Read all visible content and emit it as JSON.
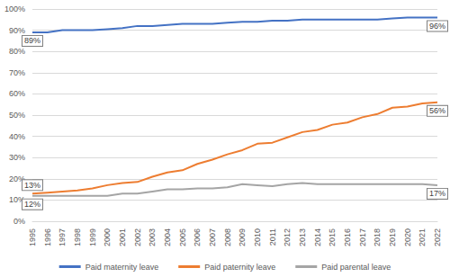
{
  "chart_data": {
    "type": "line",
    "categories": [
      "1995",
      "1996",
      "1997",
      "1998",
      "1999",
      "2000",
      "2001",
      "2002",
      "2003",
      "2004",
      "2005",
      "2006",
      "2007",
      "2008",
      "2009",
      "2010",
      "2011",
      "2012",
      "2013",
      "2014",
      "2015",
      "2016",
      "2017",
      "2018",
      "2019",
      "2020",
      "2021",
      "2022"
    ],
    "series": [
      {
        "name": "Paid maternity leave",
        "color": "#4472c4",
        "values": [
          89,
          89,
          90,
          90,
          90,
          90.5,
          91,
          92,
          92,
          92.5,
          93,
          93,
          93,
          93.5,
          94,
          94,
          94.5,
          94.5,
          95,
          95,
          95,
          95,
          95,
          95,
          95.5,
          96,
          96,
          96
        ]
      },
      {
        "name": "Paid paternity leave",
        "color": "#ed7d31",
        "values": [
          13,
          13.5,
          14,
          14.5,
          15.5,
          17,
          18,
          18.5,
          21,
          23,
          24,
          27,
          29,
          31.5,
          33.5,
          36.5,
          37,
          39.5,
          42,
          43,
          45.5,
          46.5,
          49,
          50.5,
          53.5,
          54,
          55.5,
          56
        ]
      },
      {
        "name": "Paid parental leave",
        "color": "#a5a5a5",
        "values": [
          12,
          12,
          12,
          12,
          12,
          12,
          13,
          13,
          14,
          15,
          15,
          15.5,
          15.5,
          16,
          17.5,
          17,
          16.5,
          17.5,
          18,
          17.5,
          17.5,
          17.5,
          17.5,
          17.5,
          17.5,
          17.5,
          17.5,
          17
        ]
      }
    ],
    "annotations": [
      {
        "series": "Paid maternity leave",
        "x": "1995",
        "text": "89%"
      },
      {
        "series": "Paid maternity leave",
        "x": "2022",
        "text": "96%"
      },
      {
        "series": "Paid paternity leave",
        "x": "1995",
        "text": "13%"
      },
      {
        "series": "Paid paternity leave",
        "x": "2022",
        "text": "56%"
      },
      {
        "series": "Paid parental leave",
        "x": "1995",
        "text": "12%"
      },
      {
        "series": "Paid parental leave",
        "x": "2022",
        "text": "17%"
      }
    ],
    "ylim": [
      0,
      100
    ],
    "yticks": [
      {
        "value": 0,
        "label": "0%"
      },
      {
        "value": 10,
        "label": "10%"
      },
      {
        "value": 20,
        "label": "20%"
      },
      {
        "value": 30,
        "label": "30%"
      },
      {
        "value": 40,
        "label": "40%"
      },
      {
        "value": 50,
        "label": "50%"
      },
      {
        "value": 60,
        "label": "60%"
      },
      {
        "value": 70,
        "label": "70%"
      },
      {
        "value": 80,
        "label": "80%"
      },
      {
        "value": 90,
        "label": "90%"
      },
      {
        "value": 100,
        "label": "100%"
      }
    ],
    "grid": true,
    "legend": "bottom"
  }
}
